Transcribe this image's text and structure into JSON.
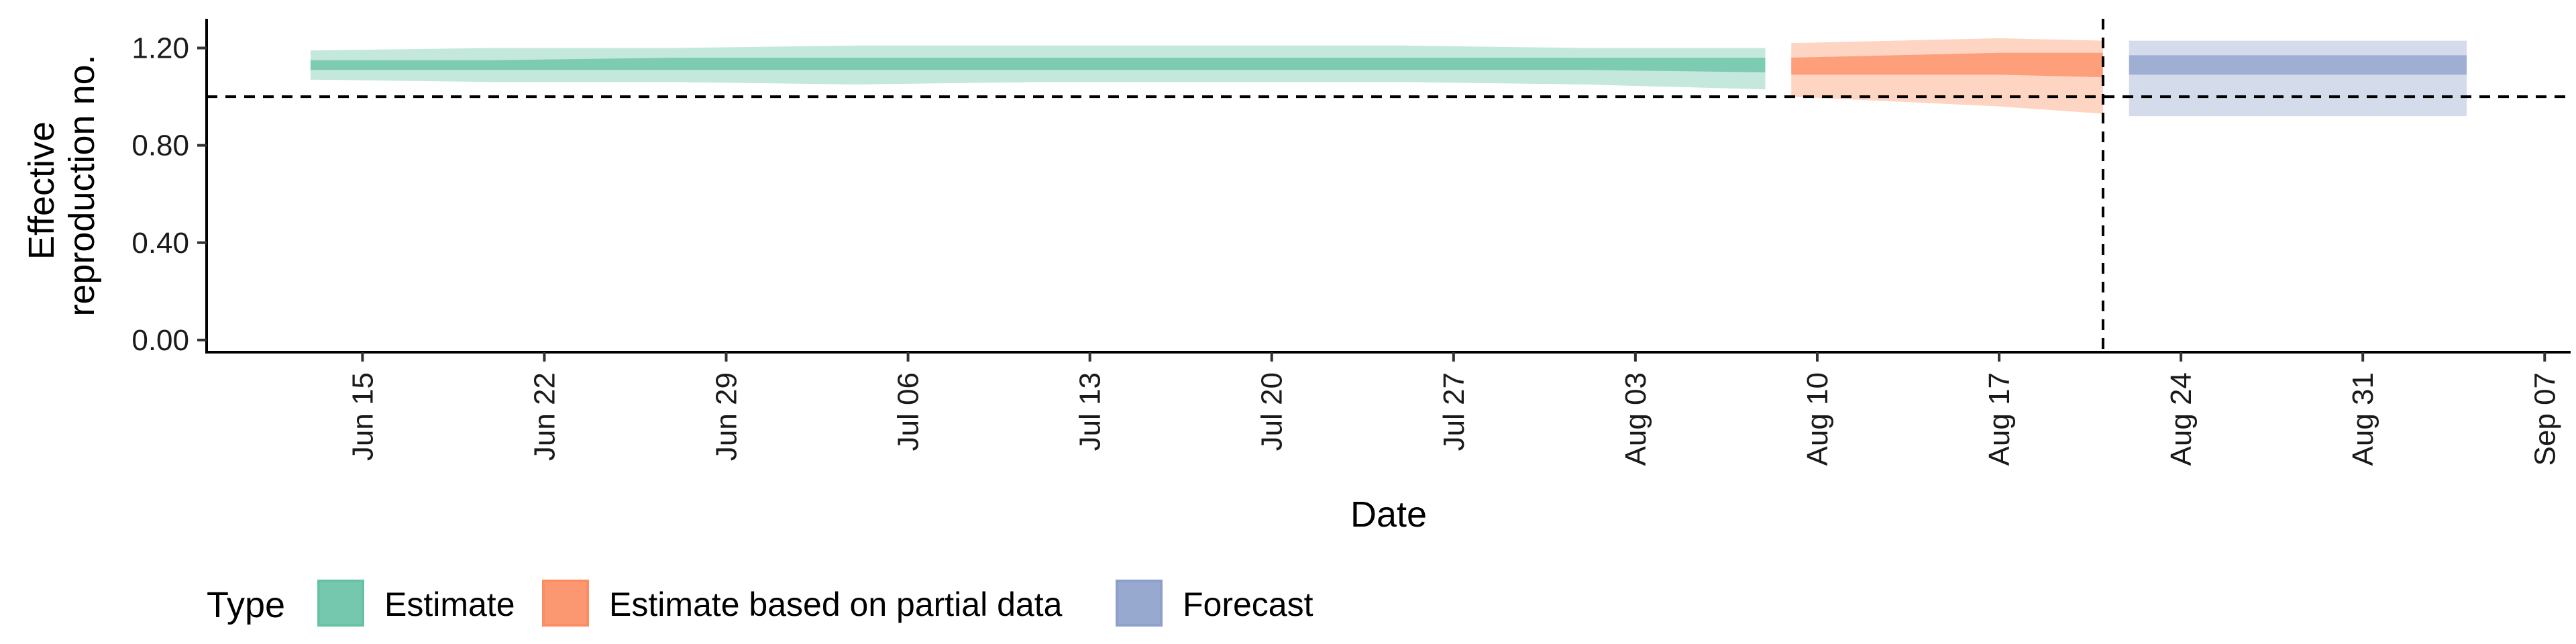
{
  "chart_data": {
    "type": "area",
    "xlabel": "Date",
    "ylabel_lines": [
      "Effective",
      "reproduction no."
    ],
    "ylim": [
      -0.05,
      1.32
    ],
    "y_ticks": [
      0.0,
      0.4,
      0.8,
      1.2
    ],
    "y_tick_labels": [
      "0.00",
      "0.40",
      "0.80",
      "1.20"
    ],
    "x_range": [
      "2020-06-09",
      "2020-09-08"
    ],
    "x_ticks": [
      "2020-06-15",
      "2020-06-22",
      "2020-06-29",
      "2020-07-06",
      "2020-07-13",
      "2020-07-20",
      "2020-07-27",
      "2020-08-03",
      "2020-08-10",
      "2020-08-17",
      "2020-08-24",
      "2020-08-31",
      "2020-09-07"
    ],
    "x_tick_labels": [
      "Jun 15",
      "Jun 22",
      "Jun 29",
      "Jul 06",
      "Jul 13",
      "Jul 20",
      "Jul 27",
      "Aug 03",
      "Aug 10",
      "Aug 17",
      "Aug 24",
      "Aug 31",
      "Sep 07"
    ],
    "reference_hline": 1.0,
    "reference_vline": "2020-08-21",
    "grid": false,
    "legend_position": "bottom",
    "legend_title": "Type",
    "series": [
      {
        "name": "Estimate",
        "color": "#66c2a5",
        "points": [
          {
            "x": "2020-06-13",
            "median": 1.13,
            "lower50": 1.11,
            "upper50": 1.15,
            "lower90": 1.07,
            "upper90": 1.19
          },
          {
            "x": "2020-06-20",
            "median": 1.13,
            "lower50": 1.11,
            "upper50": 1.15,
            "lower90": 1.06,
            "upper90": 1.2
          },
          {
            "x": "2020-06-27",
            "median": 1.13,
            "lower50": 1.11,
            "upper50": 1.16,
            "lower90": 1.06,
            "upper90": 1.2
          },
          {
            "x": "2020-07-04",
            "median": 1.13,
            "lower50": 1.11,
            "upper50": 1.16,
            "lower90": 1.05,
            "upper90": 1.21
          },
          {
            "x": "2020-07-11",
            "median": 1.13,
            "lower50": 1.11,
            "upper50": 1.16,
            "lower90": 1.06,
            "upper90": 1.21
          },
          {
            "x": "2020-07-18",
            "median": 1.13,
            "lower50": 1.11,
            "upper50": 1.16,
            "lower90": 1.06,
            "upper90": 1.21
          },
          {
            "x": "2020-07-25",
            "median": 1.13,
            "lower50": 1.11,
            "upper50": 1.16,
            "lower90": 1.06,
            "upper90": 1.21
          },
          {
            "x": "2020-08-01",
            "median": 1.13,
            "lower50": 1.11,
            "upper50": 1.16,
            "lower90": 1.05,
            "upper90": 1.2
          },
          {
            "x": "2020-08-08",
            "median": 1.13,
            "lower50": 1.1,
            "upper50": 1.16,
            "lower90": 1.03,
            "upper90": 1.2
          }
        ]
      },
      {
        "name": "Estimate based on partial data",
        "color": "#fc8d62",
        "points": [
          {
            "x": "2020-08-09",
            "median": 1.13,
            "lower50": 1.09,
            "upper50": 1.16,
            "lower90": 1.0,
            "upper90": 1.22
          },
          {
            "x": "2020-08-13",
            "median": 1.13,
            "lower50": 1.09,
            "upper50": 1.17,
            "lower90": 0.98,
            "upper90": 1.23
          },
          {
            "x": "2020-08-17",
            "median": 1.14,
            "lower50": 1.09,
            "upper50": 1.18,
            "lower90": 0.96,
            "upper90": 1.24
          },
          {
            "x": "2020-08-21",
            "median": 1.13,
            "lower50": 1.08,
            "upper50": 1.18,
            "lower90": 0.93,
            "upper90": 1.23
          }
        ]
      },
      {
        "name": "Forecast",
        "color": "#8da0cb",
        "points": [
          {
            "x": "2020-08-22",
            "median": 1.13,
            "lower50": 1.09,
            "upper50": 1.17,
            "lower90": 0.92,
            "upper90": 1.23
          },
          {
            "x": "2020-09-04",
            "median": 1.13,
            "lower50": 1.09,
            "upper50": 1.17,
            "lower90": 0.92,
            "upper90": 1.23
          }
        ]
      }
    ]
  }
}
